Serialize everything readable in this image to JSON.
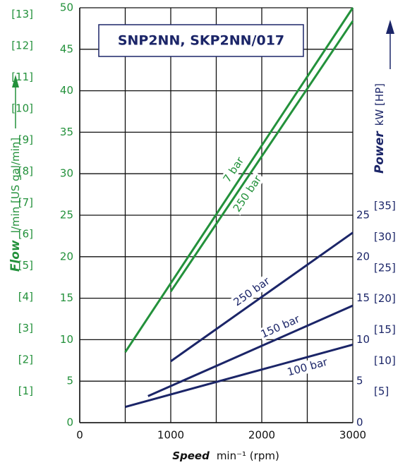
{
  "chart_data": {
    "type": "line",
    "title": "SNP2NN, SKP2NN/017",
    "x_title": "Speed",
    "x_unit": "min⁻¹ (rpm)",
    "y_title": "Flow",
    "y_unit": "l/min [US gal/min]",
    "y2_title": "Power",
    "y2_unit": "kW [HP]",
    "xlim": [
      0,
      3000
    ],
    "xticks": [
      0,
      1000,
      2000,
      3000
    ],
    "xminorticks": [
      500,
      1500,
      2500
    ],
    "ylim": [
      0,
      50
    ],
    "yticks": [
      0,
      5,
      10,
      15,
      20,
      25,
      30,
      35,
      40,
      45,
      50
    ],
    "ygallim": [
      0,
      13.21
    ],
    "ygalticks": [
      {
        "value": 1,
        "label": "[1]"
      },
      {
        "value": 2,
        "label": "[2]"
      },
      {
        "value": 3,
        "label": "[3]"
      },
      {
        "value": 4,
        "label": "[4]"
      },
      {
        "value": 5,
        "label": "[5]"
      },
      {
        "value": 6,
        "label": "[6]"
      },
      {
        "value": 7,
        "label": "[7]"
      },
      {
        "value": 8,
        "label": "[8]"
      },
      {
        "value": 9,
        "label": "[9]"
      },
      {
        "value": 10,
        "label": "[10]"
      },
      {
        "value": 11,
        "label": "[11]"
      },
      {
        "value": 12,
        "label": "[12]"
      },
      {
        "value": 13,
        "label": "[13]"
      }
    ],
    "y2lim": [
      0,
      50
    ],
    "y2ticks": [
      0,
      5,
      10,
      15,
      20,
      25
    ],
    "yhplim": [
      0,
      67.05
    ],
    "yhpticks": [
      {
        "value": 5,
        "label": "[5]"
      },
      {
        "value": 10,
        "label": "[10]"
      },
      {
        "value": 15,
        "label": "[15]"
      },
      {
        "value": 20,
        "label": "[20]"
      },
      {
        "value": 25,
        "label": "[25]"
      },
      {
        "value": 30,
        "label": "[30]"
      },
      {
        "value": 35,
        "label": "[35]"
      }
    ],
    "flow_color": "#23913b",
    "power_color": "#1b2568",
    "series": [
      {
        "name": "7 bar",
        "color": "#23913b",
        "x": [
          500,
          3000
        ],
        "values": [
          8.5,
          50
        ]
      },
      {
        "name": "250 bar",
        "color": "#23913b",
        "x": [
          1000,
          3000
        ],
        "values": [
          15.8,
          48.4
        ]
      },
      {
        "name": "250 bar",
        "color": "#1b2568",
        "axis": "y2",
        "x": [
          1000,
          3000
        ],
        "values": [
          7.4,
          22.9
        ]
      },
      {
        "name": "150 bar",
        "color": "#1b2568",
        "axis": "y2",
        "x": [
          750,
          3000
        ],
        "values": [
          3.2,
          14.1
        ]
      },
      {
        "name": "100 bar",
        "color": "#1b2568",
        "axis": "y2",
        "x": [
          500,
          3000
        ],
        "values": [
          1.9,
          9.4
        ]
      }
    ]
  }
}
